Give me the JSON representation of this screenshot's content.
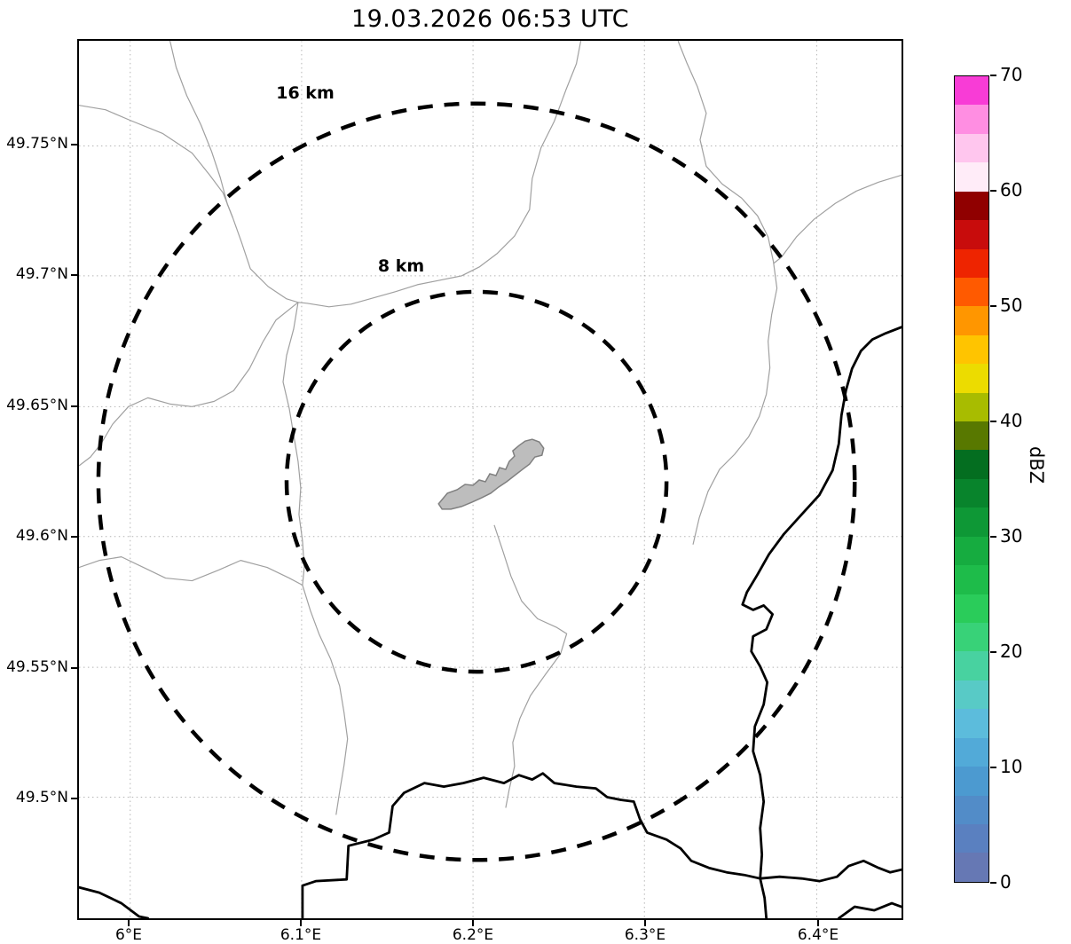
{
  "title": "19.03.2026 06:53 UTC",
  "map": {
    "x_tick_labels": [
      "6°E",
      "6.1°E",
      "6.2°E",
      "6.3°E",
      "6.4°E"
    ],
    "y_tick_labels": [
      "49.75°N",
      "49.7°N",
      "49.65°N",
      "49.6°N",
      "49.55°N",
      "49.5°N"
    ],
    "range_rings": [
      {
        "label": "16 km",
        "radius_km": 16
      },
      {
        "label": "8 km",
        "radius_km": 8
      }
    ],
    "colors": {
      "grid_line": "#b4b4b4",
      "admin_boundary": "#a0a0a0",
      "national_border": "#000000",
      "range_ring": "#000000",
      "airport_fill": "#bdbdbd",
      "airport_outline": "#808080"
    }
  },
  "colorbar": {
    "axis_label": "dBZ",
    "tick_labels": [
      "0",
      "10",
      "20",
      "30",
      "40",
      "50",
      "60",
      "70"
    ],
    "value_min": 0,
    "value_max": 70,
    "segment_colors_bottom_to_top": [
      "#6678b4",
      "#5a80c0",
      "#528cc8",
      "#4c9ad0",
      "#52aad8",
      "#5cbcdc",
      "#58cac6",
      "#48d2a0",
      "#38d278",
      "#2acc5a",
      "#1ebc4a",
      "#16ac40",
      "#0e9836",
      "#08842c",
      "#046e20",
      "#587800",
      "#a8bc00",
      "#ecdc00",
      "#ffc400",
      "#ff9600",
      "#ff5a00",
      "#ee2400",
      "#c80c0c",
      "#900000",
      "#ffecf8",
      "#ffc6ee",
      "#ff8ee2",
      "#f83cd6"
    ]
  },
  "chart_data": {
    "type": "heatmap",
    "title": "19.03.2026 06:53 UTC",
    "x_axis_ticks": [
      "6°E",
      "6.1°E",
      "6.2°E",
      "6.3°E",
      "6.4°E"
    ],
    "y_axis_ticks": [
      "49.5°N",
      "49.55°N",
      "49.6°N",
      "49.65°N",
      "49.7°N",
      "49.75°N"
    ],
    "colorbar": {
      "label": "dBZ",
      "range": [
        0,
        70
      ],
      "ticks": [
        0,
        10,
        20,
        30,
        40,
        50,
        60,
        70
      ]
    },
    "range_rings_km": [
      8,
      16
    ],
    "radar_echoes": "none visible on map"
  }
}
